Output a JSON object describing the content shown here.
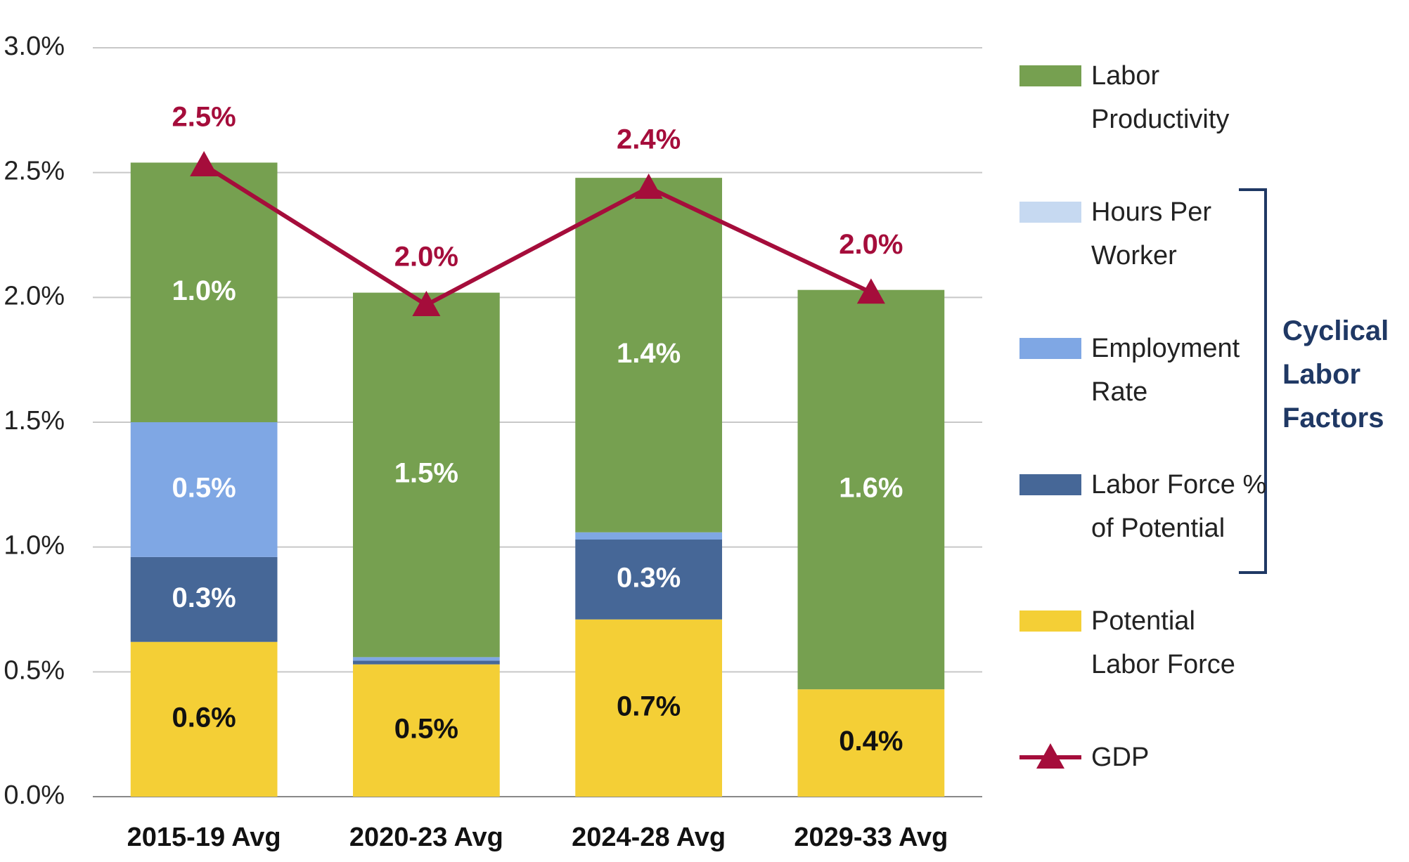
{
  "chart_data": {
    "type": "bar",
    "stacked": true,
    "categories": [
      "2015-19 Avg",
      "2020-23 Avg",
      "2024-28 Avg",
      "2029-33 Avg"
    ],
    "series": [
      {
        "name": "Potential Labor Force",
        "color": "#f4cf36",
        "values": [
          0.62,
          0.53,
          0.71,
          0.43
        ],
        "value_labels": [
          "0.6%",
          "0.5%",
          "0.7%",
          "0.4%"
        ]
      },
      {
        "name": "Labor Force % of Potential",
        "color": "#466797",
        "values": [
          0.34,
          0.015,
          0.32,
          0
        ],
        "value_labels": [
          "0.3%",
          null,
          "0.3%",
          null
        ]
      },
      {
        "name": "Employment Rate",
        "color": "#7fa7e4",
        "values": [
          0.54,
          0.014,
          0.029,
          0
        ],
        "value_labels": [
          "0.5%",
          null,
          null,
          null
        ]
      },
      {
        "name": "Hours Per Worker",
        "color": "#c6d9f1",
        "values": [
          0,
          0,
          0,
          0
        ],
        "value_labels": [
          null,
          null,
          null,
          null
        ]
      },
      {
        "name": "Labor Productivity",
        "color": "#76a050",
        "values": [
          1.04,
          1.46,
          1.42,
          1.6
        ],
        "value_labels": [
          "1.0%",
          "1.5%",
          "1.4%",
          "1.6%"
        ]
      },
      {
        "name": "GDP",
        "type": "line",
        "color": "#a50d3b",
        "values": [
          2.53,
          1.97,
          2.44,
          2.02
        ],
        "value_labels": [
          "2.5%",
          "2.0%",
          "2.4%",
          "2.0%"
        ]
      }
    ],
    "annotation": "Cyclical Labor Factors",
    "ylim": [
      0,
      3
    ],
    "yticks": [
      {
        "value": 0,
        "label": "0.0%"
      },
      {
        "value": 0.5,
        "label": "0.5%"
      },
      {
        "value": 1,
        "label": "1.0%"
      },
      {
        "value": 1.5,
        "label": "1.5%"
      },
      {
        "value": 2,
        "label": "2.0%"
      },
      {
        "value": 2.5,
        "label": "2.5%"
      },
      {
        "value": 3,
        "label": "3.0%"
      }
    ],
    "grid": true
  }
}
